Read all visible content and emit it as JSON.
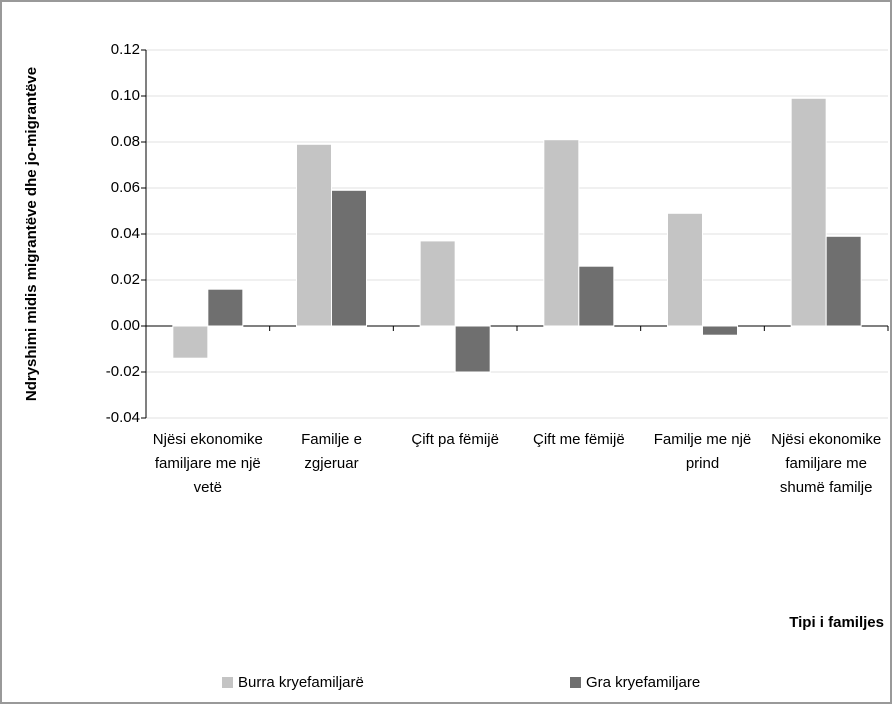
{
  "chart_data": {
    "type": "bar",
    "y_label": "Ndryshimi midis migrantëve dhe jo-migrantëve",
    "x_label": "Tipi i familjes",
    "categories": [
      "Njësi ekonomike familjare me një vetë",
      "Familje e zgjeruar",
      "Çift pa fëmijë",
      "Çift me fëmijë",
      "Familje me një prind",
      "Njësi ekonomike familjare me shumë familje"
    ],
    "series": [
      {
        "name": "Burra kryefamiljarë",
        "color": "#c4c4c4",
        "values": [
          -0.014,
          0.079,
          0.037,
          0.081,
          0.049,
          0.099
        ]
      },
      {
        "name": "Gra kryefamiljare",
        "color": "#6f6f6f",
        "values": [
          0.016,
          0.059,
          -0.02,
          0.026,
          -0.004,
          0.039
        ]
      }
    ],
    "ylim": [
      -0.04,
      0.12
    ],
    "yticks": [
      -0.04,
      -0.02,
      {
        "value": 0,
        "label": "0.00"
      },
      0.02,
      0.04,
      0.06,
      0.08,
      {
        "value": 0.1,
        "label": "0.10"
      },
      0.12
    ],
    "grid": true
  }
}
